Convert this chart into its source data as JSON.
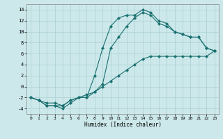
{
  "xlabel": "Humidex (Indice chaleur)",
  "bg_color": "#cce8ea",
  "grid_color": "#aacfd2",
  "line_color": "#1a7070",
  "xlim": [
    -0.5,
    23.5
  ],
  "ylim": [
    -5,
    15
  ],
  "x_ticks": [
    0,
    1,
    2,
    3,
    4,
    5,
    6,
    7,
    8,
    9,
    10,
    11,
    12,
    13,
    14,
    15,
    16,
    17,
    18,
    19,
    20,
    21,
    22,
    23
  ],
  "y_ticks": [
    -4,
    -2,
    0,
    2,
    4,
    6,
    8,
    10,
    12,
    14
  ],
  "line1_x": [
    0,
    1,
    2,
    3,
    4,
    5,
    6,
    7,
    8,
    9,
    10,
    11,
    12,
    13,
    14,
    15,
    16,
    17,
    18,
    19,
    20,
    21,
    22,
    23
  ],
  "line1_y": [
    -2,
    -2.5,
    -3.5,
    -3.5,
    -4,
    -3,
    -2,
    -1.5,
    -1,
    0,
    1,
    2,
    3,
    4,
    5,
    5.5,
    5.5,
    5.5,
    5.5,
    5.5,
    5.5,
    5.5,
    5.5,
    6.5
  ],
  "line2_x": [
    0,
    1,
    2,
    3,
    4,
    5,
    6,
    7,
    8,
    9,
    10,
    11,
    12,
    13,
    14,
    15,
    16,
    17,
    18,
    19,
    20,
    21,
    22,
    23
  ],
  "line2_y": [
    -2,
    -2.5,
    -3.5,
    -3.5,
    -3.5,
    -2.5,
    -2,
    -2,
    -1,
    0.5,
    7,
    9,
    11,
    12.5,
    13.5,
    13,
    11.5,
    11,
    10,
    9.5,
    9,
    9,
    7,
    6.5
  ],
  "line3_x": [
    0,
    1,
    2,
    3,
    4,
    5,
    6,
    7,
    8,
    9,
    10,
    11,
    12,
    13,
    14,
    15,
    16,
    17,
    18,
    19,
    20,
    21,
    22,
    23
  ],
  "line3_y": [
    -2,
    -2.5,
    -3,
    -3,
    -3.5,
    -2.5,
    -2,
    -2,
    2,
    7,
    11,
    12.5,
    13,
    13,
    14,
    13.5,
    12,
    11.5,
    10,
    9.5,
    9,
    9,
    7,
    6.5
  ],
  "marker_x2": [
    0,
    1,
    2,
    3,
    4,
    5,
    6,
    8,
    9,
    10,
    11,
    12,
    13,
    14,
    15,
    16,
    17,
    18,
    19,
    20,
    21,
    22,
    23
  ],
  "marker_x3": [
    0,
    1,
    2,
    3,
    4,
    5,
    6,
    8,
    9,
    10,
    11,
    12,
    13,
    14,
    15,
    16,
    17,
    18,
    19,
    20,
    21,
    22,
    23
  ]
}
